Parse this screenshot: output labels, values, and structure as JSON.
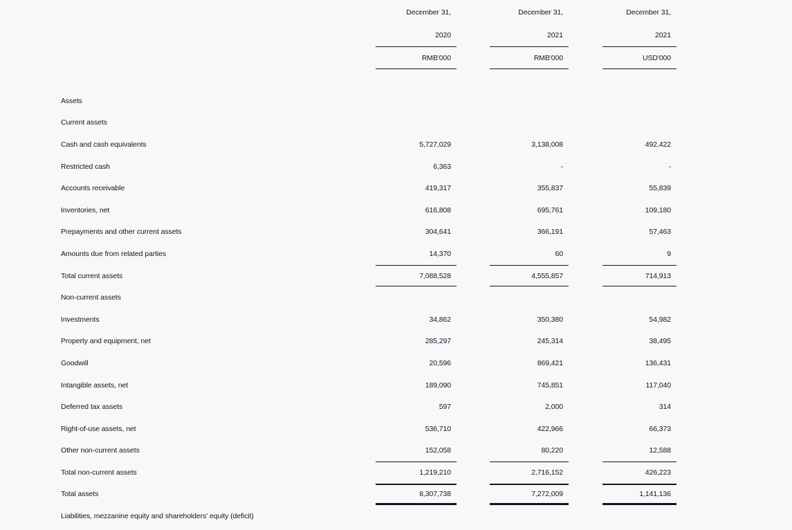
{
  "page": {
    "background_color": "#f7f8fa",
    "text_color": "#15151a",
    "rule_color": "#15151a"
  },
  "table": {
    "columns": [
      {
        "period": "December 31,",
        "year": "2020",
        "unit": "RMB'000"
      },
      {
        "period": "December 31,",
        "year": "2021",
        "unit": "RMB'000"
      },
      {
        "period": "December 31,",
        "year": "2021",
        "unit": "USD'000"
      }
    ],
    "rows": [
      {
        "type": "section",
        "label": "Assets",
        "values": [
          "",
          "",
          ""
        ]
      },
      {
        "type": "section",
        "label": "Current assets",
        "values": [
          "",
          "",
          ""
        ]
      },
      {
        "type": "item",
        "label": "Cash and cash equivalents",
        "values": [
          "5,727,029",
          "3,138,008",
          "492,422"
        ]
      },
      {
        "type": "item",
        "label": "Restricted cash",
        "values": [
          "6,363",
          "-",
          "-"
        ]
      },
      {
        "type": "item",
        "label": "Accounts receivable",
        "values": [
          "419,317",
          "355,837",
          "55,839"
        ]
      },
      {
        "type": "item",
        "label": "Inventories, net",
        "values": [
          "616,808",
          "695,761",
          "109,180"
        ]
      },
      {
        "type": "item",
        "label": "Prepayments and other current assets",
        "values": [
          "304,641",
          "366,191",
          "57,463"
        ]
      },
      {
        "type": "item",
        "label": "Amounts due from related parties",
        "values": [
          "14,370",
          "60",
          "9"
        ]
      },
      {
        "type": "total",
        "label": "Total current assets",
        "values": [
          "7,088,528",
          "4,555,857",
          "714,913"
        ]
      },
      {
        "type": "section",
        "label": "Non-current assets",
        "values": [
          "",
          "",
          ""
        ]
      },
      {
        "type": "item",
        "label": "Investments",
        "values": [
          "34,862",
          "350,380",
          "54,982"
        ]
      },
      {
        "type": "item",
        "label": "Property and equipment, net",
        "values": [
          "285,297",
          "245,314",
          "38,495"
        ]
      },
      {
        "type": "item",
        "label": "Goodwill",
        "values": [
          "20,596",
          "869,421",
          "136,431"
        ]
      },
      {
        "type": "item",
        "label": "Intangible assets, net",
        "values": [
          "189,090",
          "745,851",
          "117,040"
        ]
      },
      {
        "type": "item",
        "label": "Deferred tax assets",
        "values": [
          "597",
          "2,000",
          "314"
        ]
      },
      {
        "type": "item",
        "label": "Right-of-use assets, net",
        "values": [
          "536,710",
          "422,966",
          "66,373"
        ]
      },
      {
        "type": "item",
        "label": "Other non-current assets",
        "values": [
          "152,058",
          "80,220",
          "12,588"
        ]
      },
      {
        "type": "total_open",
        "label": "Total non-current assets",
        "values": [
          "1,219,210",
          "2,716,152",
          "426,223"
        ]
      },
      {
        "type": "grand",
        "label": "Total assets",
        "values": [
          "8,307,738",
          "7,272,009",
          "1,141,136"
        ]
      },
      {
        "type": "section",
        "label": "Liabilities, mezzanine equity and shareholders' equity (deficit)",
        "values": [
          "",
          "",
          ""
        ]
      }
    ]
  }
}
